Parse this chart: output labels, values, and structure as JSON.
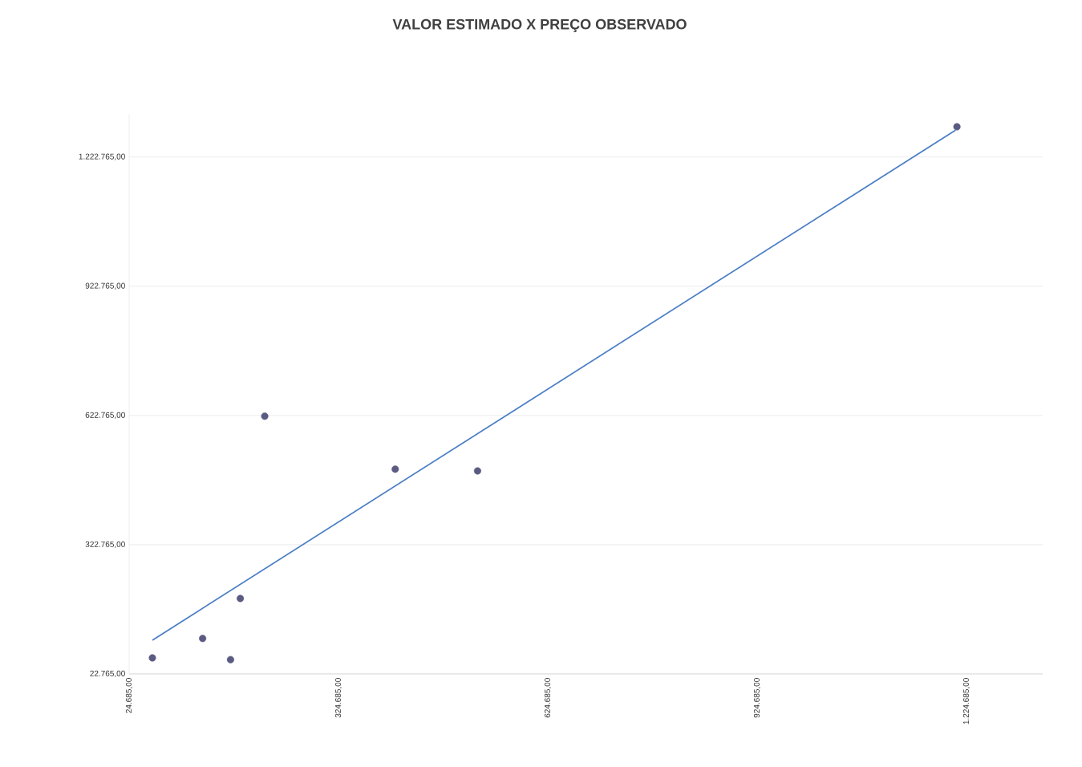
{
  "chart_data": {
    "type": "scatter",
    "title": "VALOR ESTIMADO X PREÇO OBSERVADO",
    "xlim": [
      24685,
      1333900
    ],
    "ylim": [
      22765,
      1322765
    ],
    "xticks": [
      {
        "value": 24685,
        "label": "24.685,00"
      },
      {
        "value": 324685,
        "label": "324.685,00"
      },
      {
        "value": 624685,
        "label": "624.685,00"
      },
      {
        "value": 924685,
        "label": "924.685,00"
      },
      {
        "value": 1224685,
        "label": "1.224.685,00"
      }
    ],
    "yticks": [
      {
        "value": 22765,
        "label": "22.765,00"
      },
      {
        "value": 322765,
        "label": "322.765,00"
      },
      {
        "value": 622765,
        "label": "622.765,00"
      },
      {
        "value": 922765,
        "label": "922.765,00"
      },
      {
        "value": 1222765,
        "label": "1.222.765,00"
      }
    ],
    "grid": "y",
    "series": [
      {
        "color": "#5a5a82",
        "marker": "circle",
        "x": [
          58000,
          130000,
          170000,
          184000,
          219000,
          406000,
          524000,
          1211000
        ],
        "values": [
          60000,
          105000,
          56000,
          198000,
          621000,
          498000,
          494000,
          1293000
        ]
      },
      {
        "type": "line",
        "color": "#4a7ec4",
        "marker": "none",
        "line_style": "solid",
        "x": [
          58000,
          1209000
        ],
        "values": [
          101000,
          1285000
        ]
      }
    ]
  }
}
